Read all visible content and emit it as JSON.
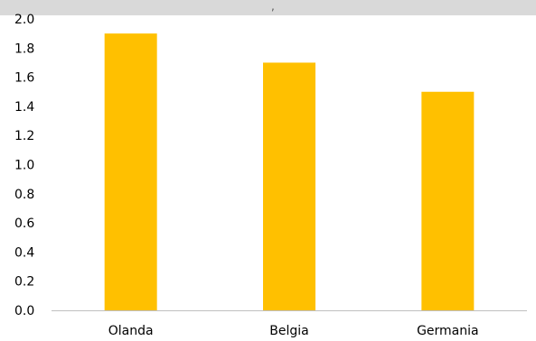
{
  "top_fragment": ",",
  "colors": {
    "bar": "#ffc000",
    "axis": "#bfbfbf",
    "top_band": "#d9d9d9"
  },
  "chart_data": {
    "type": "bar",
    "title": "",
    "xlabel": "",
    "ylabel": "",
    "categories": [
      "Olanda",
      "Belgia",
      "Germania"
    ],
    "values": [
      1.9,
      1.7,
      1.5
    ],
    "ylim": [
      0,
      2.0
    ],
    "yticks": [
      "0.0",
      "0.2",
      "0.4",
      "0.6",
      "0.8",
      "1.0",
      "1.2",
      "1.4",
      "1.6",
      "1.8",
      "2.0"
    ],
    "grid": false,
    "legend": "none"
  }
}
